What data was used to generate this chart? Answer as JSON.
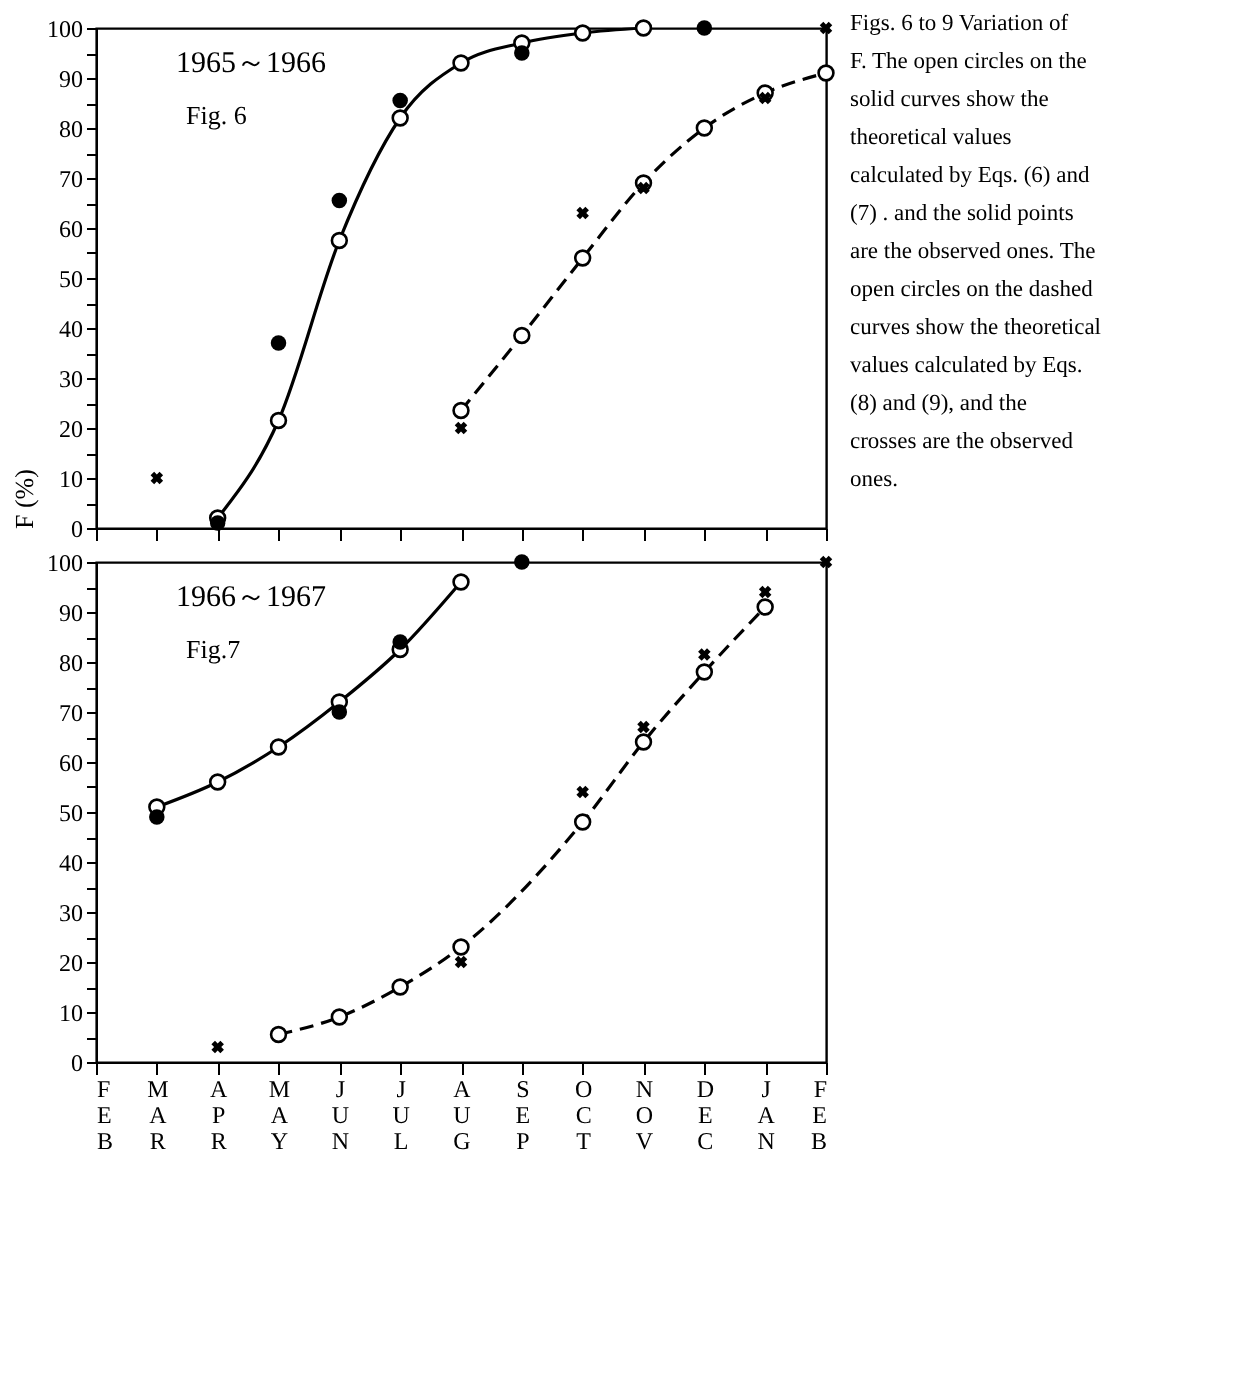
{
  "chart_data": [
    {
      "type": "line",
      "ylabel": "F (%)",
      "categories": [
        "FEB",
        "MAR",
        "APR",
        "MAY",
        "JUN",
        "JUL",
        "AUG",
        "SEP",
        "OCT",
        "NOV",
        "DEC",
        "JAN",
        "FEB"
      ],
      "annotations": [
        "1965～1966",
        "Fig. 6",
        "Figs. 6 to 9 Variation of F. The open circles on the solid curves show the theoretical values calculated by Eqs. (6) and (7) . and the solid points are the observed ones. The open circles on the dashed curves show the theoretical values calculated by Eqs. (8) and (9), and the crosses are the observed ones."
      ],
      "series": [
        {
          "type": "line",
          "color": "#000000",
          "marker": "circle",
          "line_style": "solid",
          "values": [
            null,
            null,
            2,
            21.5,
            57.5,
            82,
            93,
            97,
            99,
            100,
            null,
            null,
            null
          ]
        },
        {
          "type": "scatter",
          "color": "#000000",
          "marker": "circle",
          "values": [
            null,
            null,
            1,
            37,
            65.5,
            85.5,
            null,
            95,
            null,
            null,
            100,
            null,
            null
          ]
        },
        {
          "type": "line",
          "color": "#000000",
          "marker": "circle",
          "line_style": "dashed",
          "values": [
            null,
            null,
            null,
            null,
            null,
            null,
            23.5,
            38.5,
            54,
            69,
            80,
            87,
            91
          ]
        },
        {
          "type": "scatter",
          "color": "#000000",
          "marker": "cross",
          "values": [
            null,
            10,
            null,
            null,
            null,
            null,
            20,
            null,
            63,
            68,
            null,
            86,
            100
          ]
        }
      ],
      "ylim": [
        0,
        100
      ],
      "yticks": [
        0,
        {
          "value": 5,
          "label": null
        },
        10,
        {
          "value": 15,
          "label": null
        },
        20,
        {
          "value": 25,
          "label": null
        },
        30,
        {
          "value": 35,
          "label": null
        },
        40,
        {
          "value": 45,
          "label": null
        },
        50,
        {
          "value": 55,
          "label": null
        },
        60,
        {
          "value": 65,
          "label": null
        },
        70,
        {
          "value": 75,
          "label": null
        },
        80,
        {
          "value": 85,
          "label": null
        },
        90,
        {
          "value": 95,
          "label": null
        },
        100
      ],
      "tick_labels": "y",
      "grid": false,
      "legend": false
    },
    {
      "type": "line",
      "categories": [
        "FEB",
        "MAR",
        "APR",
        "MAY",
        "JUN",
        "JUL",
        "AUG",
        "SEP",
        "OCT",
        "NOV",
        "DEC",
        "JAN",
        "FEB"
      ],
      "annotations": [
        "1966～1967",
        "Fig.7"
      ],
      "series": [
        {
          "type": "line",
          "color": "#000000",
          "marker": "circle",
          "line_style": "solid",
          "values": [
            null,
            51,
            56,
            63,
            72,
            82.5,
            96,
            null,
            null,
            null,
            null,
            null,
            null
          ]
        },
        {
          "type": "scatter",
          "color": "#000000",
          "marker": "circle",
          "values": [
            null,
            49,
            null,
            null,
            70,
            84,
            null,
            100,
            null,
            null,
            null,
            null,
            null
          ]
        },
        {
          "type": "line",
          "color": "#000000",
          "marker": "circle",
          "line_style": "dashed",
          "values": [
            null,
            null,
            null,
            5.5,
            9,
            15,
            23,
            null,
            48,
            64,
            78,
            91,
            null
          ]
        },
        {
          "type": "scatter",
          "color": "#000000",
          "marker": "cross",
          "values": [
            null,
            null,
            3,
            null,
            null,
            null,
            20,
            null,
            54,
            67,
            81.5,
            94,
            100
          ]
        }
      ],
      "ylim": [
        0,
        100
      ],
      "yticks": [
        0,
        {
          "value": 5,
          "label": null
        },
        10,
        {
          "value": 15,
          "label": null
        },
        20,
        {
          "value": 25,
          "label": null
        },
        30,
        {
          "value": 35,
          "label": null
        },
        40,
        {
          "value": 45,
          "label": null
        },
        50,
        {
          "value": 55,
          "label": null
        },
        60,
        {
          "value": 65,
          "label": null
        },
        70,
        {
          "value": 75,
          "label": null
        },
        80,
        {
          "value": 85,
          "label": null
        },
        90,
        {
          "value": 95,
          "label": null
        },
        100
      ],
      "grid": false,
      "legend": false
    }
  ]
}
